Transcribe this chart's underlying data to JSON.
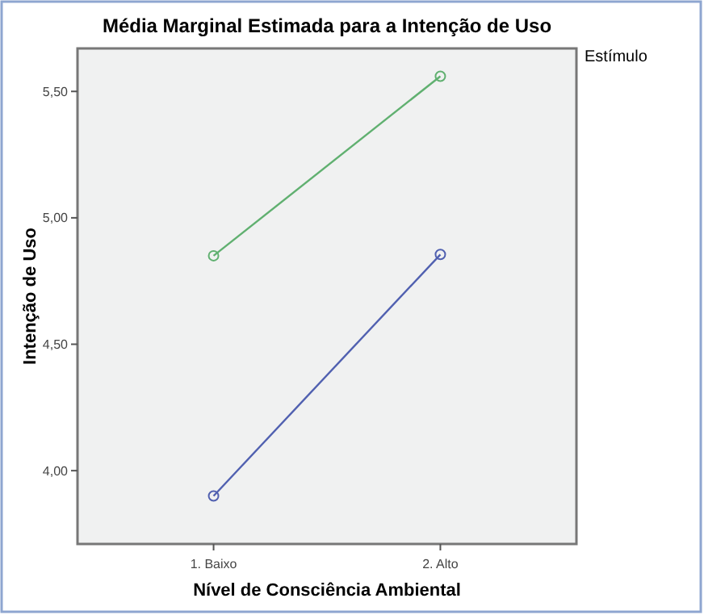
{
  "chart_data": {
    "type": "line",
    "title": "Média Marginal Estimada para a Intenção de Uso",
    "xlabel": "Nível de Consciência Ambiental",
    "ylabel": "Intenção de Uso",
    "legend_title": "Estímulo",
    "legend": false,
    "marker": "circle",
    "grid": false,
    "categories": [
      "1. Baixo",
      "2. Alto"
    ],
    "ylim": [
      3.71,
      5.67
    ],
    "yticks": [
      {
        "value": 4,
        "label": "4,00"
      },
      {
        "value": 4.5,
        "label": "4,50"
      },
      {
        "value": 5,
        "label": "5,00"
      },
      {
        "value": 5.5,
        "label": "5,50"
      }
    ],
    "series": [
      {
        "color": "#5060b0",
        "values": [
          3.9,
          4.855
        ]
      },
      {
        "color": "#60b070",
        "values": [
          4.85,
          5.56
        ]
      }
    ]
  }
}
